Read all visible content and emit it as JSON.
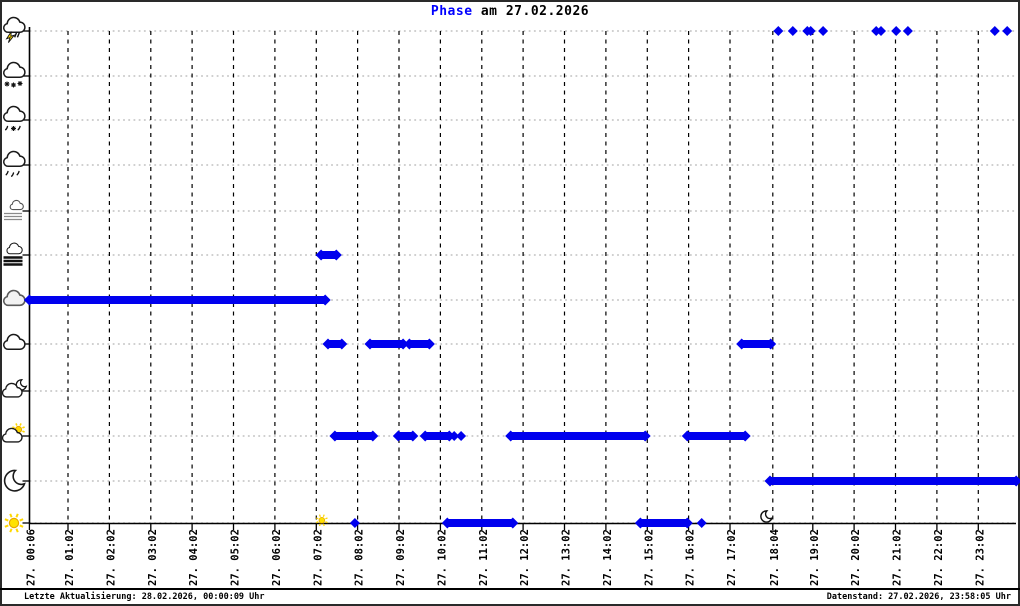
{
  "title": {
    "emphasis": "Phase",
    "rest": " am 27.02.2026"
  },
  "footer": {
    "left": "Letzte Aktualisierung: 28.02.2026, 00:00:09 Uhr",
    "right": "Datenstand: 27.02.2026, 23:58:05 Uhr"
  },
  "colors": {
    "title_blue": "#0000ff",
    "data_blue": "#0000ee",
    "sun_yellow": "#ffd800",
    "grid_gray": "#b5b5b5",
    "axis_black": "#000000"
  },
  "chart_data": {
    "type": "scatter",
    "title": "Phase am 27.02.2026",
    "x_tick_labels": [
      "27. 00:06",
      "27. 01:02",
      "27. 02:02",
      "27. 03:02",
      "27. 04:02",
      "27. 05:02",
      "27. 06:02",
      "27. 07:02",
      "27. 08:02",
      "27. 09:02",
      "27. 10:02",
      "27. 11:02",
      "27. 12:02",
      "27. 13:02",
      "27. 14:02",
      "27. 15:02",
      "27. 16:02",
      "27. 17:02",
      "27. 18:04",
      "27. 19:02",
      "27. 20:02",
      "27. 21:02",
      "27. 22:02",
      "27. 23:02"
    ],
    "x_axis": {
      "start": "00:06",
      "end": "23:57"
    },
    "rows": [
      {
        "name": "thunderstorm",
        "icon": "cloud-lightning-icon"
      },
      {
        "name": "snow",
        "icon": "cloud-snow-icon"
      },
      {
        "name": "sleet",
        "icon": "cloud-sleet-icon"
      },
      {
        "name": "rain",
        "icon": "cloud-rain-icon"
      },
      {
        "name": "mist",
        "icon": "mist-icon"
      },
      {
        "name": "fog",
        "icon": "fog-icon"
      },
      {
        "name": "overcast",
        "icon": "overcast-cloud-icon"
      },
      {
        "name": "cloudy",
        "icon": "cloud-icon"
      },
      {
        "name": "partly-cloudy-night",
        "icon": "cloud-moon-icon"
      },
      {
        "name": "partly-cloudy-day",
        "icon": "cloud-sun-icon"
      },
      {
        "name": "clear-night",
        "icon": "moon-icon"
      },
      {
        "name": "clear-day",
        "icon": "sun-icon"
      }
    ],
    "segments": [
      {
        "row": "overcast",
        "from": "00:06",
        "to": "07:15"
      },
      {
        "row": "fog",
        "from": "07:09",
        "to": "07:31"
      },
      {
        "row": "cloudy",
        "from": "07:19",
        "to": "07:39"
      },
      {
        "row": "cloudy",
        "from": "08:20",
        "to": "09:08"
      },
      {
        "row": "cloudy",
        "from": "09:17",
        "to": "09:46"
      },
      {
        "row": "cloudy",
        "from": "17:19",
        "to": "18:01"
      },
      {
        "row": "partly-cloudy-day",
        "from": "07:29",
        "to": "08:24"
      },
      {
        "row": "partly-cloudy-day",
        "from": "09:01",
        "to": "09:22"
      },
      {
        "row": "partly-cloudy-day",
        "from": "09:40",
        "to": "10:15"
      },
      {
        "row": "partly-cloudy-day",
        "from": "11:44",
        "to": "14:59"
      },
      {
        "row": "partly-cloudy-day",
        "from": "16:00",
        "to": "17:24"
      },
      {
        "row": "clear-day",
        "from": "10:12",
        "to": "11:47"
      },
      {
        "row": "clear-day",
        "from": "14:52",
        "to": "16:00"
      },
      {
        "row": "clear-night",
        "from": "18:00",
        "to": "23:57"
      }
    ],
    "points": [
      {
        "row": "clear-day",
        "at": "07:58"
      },
      {
        "row": "partly-cloudy-day",
        "at": "10:22"
      },
      {
        "row": "partly-cloudy-day",
        "at": "10:32"
      },
      {
        "row": "clear-day",
        "at": "16:21"
      },
      {
        "row": "thunderstorm",
        "at": "18:12"
      },
      {
        "row": "thunderstorm",
        "at": "18:33"
      },
      {
        "row": "thunderstorm",
        "at": "18:54"
      },
      {
        "row": "thunderstorm",
        "at": "18:59"
      },
      {
        "row": "thunderstorm",
        "at": "19:17"
      },
      {
        "row": "thunderstorm",
        "at": "20:34"
      },
      {
        "row": "thunderstorm",
        "at": "20:41"
      },
      {
        "row": "thunderstorm",
        "at": "21:03"
      },
      {
        "row": "thunderstorm",
        "at": "21:20"
      },
      {
        "row": "thunderstorm",
        "at": "23:26"
      },
      {
        "row": "thunderstorm",
        "at": "23:44"
      }
    ],
    "sun_markers": {
      "sunrise": "07:10",
      "sunset": "17:57"
    }
  }
}
